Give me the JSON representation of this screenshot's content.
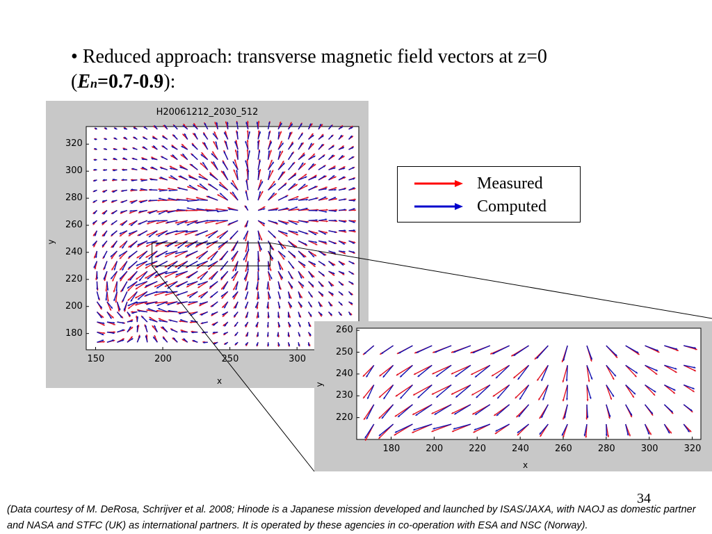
{
  "slide": {
    "bullet": "•",
    "title_line1": "Reduced approach: transverse magnetic field vectors at z=0",
    "title_open": "(",
    "title_E": "E",
    "title_n": "n",
    "title_range": "=0.7-0.9",
    "title_close": "):",
    "page_number": "34",
    "footnote": "(Data courtesy of M. DeRosa, Schrijver et al. 2008; Hinode is a Japanese mission developed and launched by ISAS/JAXA, with NAOJ as domestic partner and NASA and STFC (UK) as international partners. It is operated by these agencies in co-operation with ESA and NSC (Norway)."
  },
  "main_plot": {
    "title": "H20061212_2030_512",
    "xlabel": "x",
    "ylabel": "y",
    "x_ticks": [
      "150",
      "200",
      "250",
      "300"
    ],
    "y_ticks": [
      "320",
      "300",
      "280",
      "260",
      "240",
      "220",
      "200",
      "180"
    ],
    "xlim": [
      143,
      346
    ],
    "ylim": [
      168,
      333
    ]
  },
  "inset_plot": {
    "xlabel": "x",
    "ylabel": "y",
    "x_ticks": [
      "180",
      "200",
      "220",
      "240",
      "260",
      "280",
      "300",
      "320"
    ],
    "y_ticks": [
      "260",
      "250",
      "240",
      "230",
      "220"
    ],
    "xlim": [
      164,
      324
    ],
    "ylim": [
      210,
      261
    ]
  },
  "zoom_region": {
    "x": [
      192,
      280
    ],
    "y": [
      230,
      247
    ]
  },
  "legend": {
    "items": [
      {
        "label": "Measured",
        "color": "#ff0000"
      },
      {
        "label": "Computed",
        "color": "#0000cc"
      }
    ]
  }
}
